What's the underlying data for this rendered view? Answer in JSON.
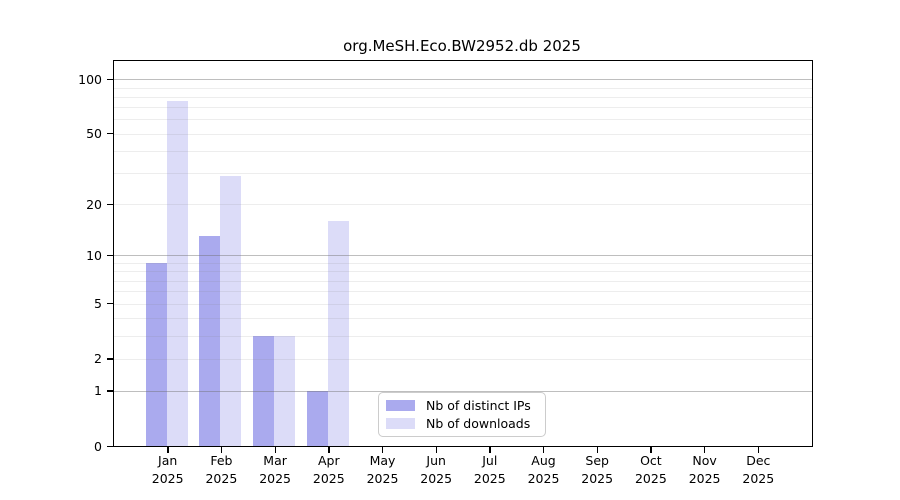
{
  "title": "org.MeSH.Eco.BW2952.db 2025",
  "chart_data": {
    "type": "bar",
    "title": "org.MeSH.Eco.BW2952.db 2025",
    "categories": [
      "Jan 2025",
      "Feb 2025",
      "Mar 2025",
      "Apr 2025",
      "May 2025",
      "Jun 2025",
      "Jul 2025",
      "Aug 2025",
      "Sep 2025",
      "Oct 2025",
      "Nov 2025",
      "Dec 2025"
    ],
    "series": [
      {
        "name": "Nb of distinct IPs",
        "color": "#aaaaee",
        "values": [
          9,
          13,
          3,
          1,
          0,
          0,
          0,
          0,
          0,
          0,
          0,
          0
        ]
      },
      {
        "name": "Nb of downloads",
        "color": "#dcdcf8",
        "values": [
          76,
          29,
          3,
          16,
          0,
          0,
          0,
          0,
          0,
          0,
          0,
          0
        ]
      }
    ],
    "xlabel": "",
    "ylabel": "",
    "yaxis": {
      "scale": "log10(1+x)",
      "labeled_ticks": [
        100,
        50,
        20,
        10,
        5,
        2,
        1,
        0
      ],
      "major_gridlines": [
        1,
        10,
        100
      ],
      "minor_gridlines": [
        2,
        3,
        4,
        5,
        6,
        7,
        8,
        9,
        20,
        30,
        40,
        50,
        60,
        70,
        80,
        90
      ],
      "ylim": [
        0,
        126
      ]
    },
    "grid": true,
    "legend_position": "lower center"
  },
  "legend": {
    "entries": [
      {
        "label": "Nb of distinct IPs",
        "color": "#aaaaee"
      },
      {
        "label": "Nb of downloads",
        "color": "#dcdcf8"
      }
    ]
  }
}
